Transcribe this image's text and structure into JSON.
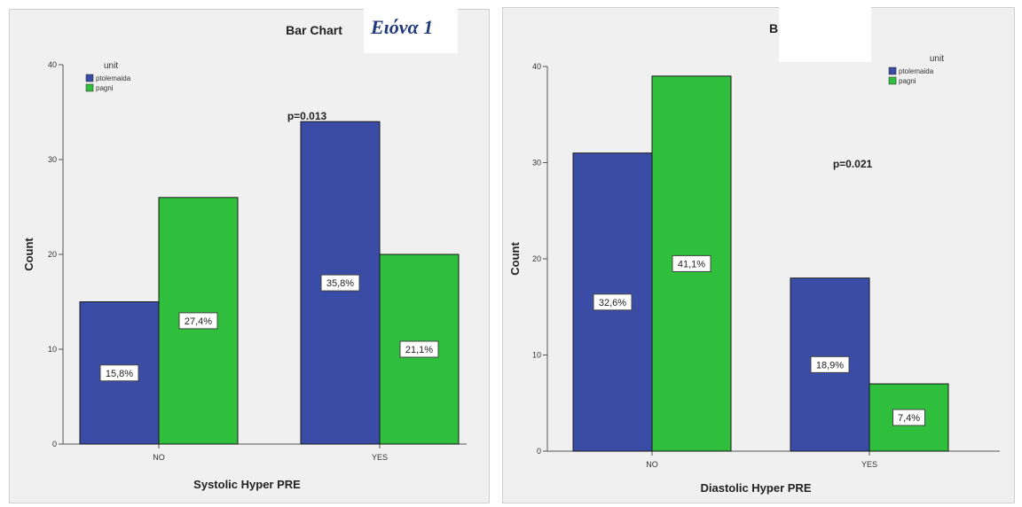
{
  "caption": "Ειόνα 1",
  "chart_data": [
    {
      "type": "bar",
      "title": "Bar Chart",
      "annotation": "p=0.013",
      "xlabel": "Systolic Hyper PRE",
      "ylabel": "Count",
      "categories": [
        "NO",
        "YES"
      ],
      "ylim": [
        0,
        40
      ],
      "yticks": [
        0,
        10,
        20,
        30,
        40
      ],
      "legend_title": "unit",
      "legend_position": "top-left",
      "grid": false,
      "series": [
        {
          "name": "ptolemaida",
          "color": "#3a4ca6",
          "values": [
            15,
            34
          ],
          "labels": [
            "15,8%",
            "35,8%"
          ]
        },
        {
          "name": "pagni",
          "color": "#2fbf3c",
          "values": [
            26,
            20
          ],
          "labels": [
            "27,4%",
            "21,1%"
          ]
        }
      ]
    },
    {
      "type": "bar",
      "title": "B",
      "annotation": "p=0.021",
      "xlabel": "Diastolic Hyper PRE",
      "ylabel": "Count",
      "categories": [
        "NO",
        "YES"
      ],
      "ylim": [
        0,
        40
      ],
      "yticks": [
        0,
        10,
        20,
        30,
        40
      ],
      "legend_title": "unit",
      "legend_position": "top-right",
      "grid": false,
      "series": [
        {
          "name": "ptolemaida",
          "color": "#3a4ca6",
          "values": [
            31,
            18
          ],
          "labels": [
            "32,6%",
            "18,9%"
          ]
        },
        {
          "name": "pagni",
          "color": "#2fbf3c",
          "values": [
            39,
            7
          ],
          "labels": [
            "41,1%",
            "7,4%"
          ]
        }
      ]
    }
  ]
}
